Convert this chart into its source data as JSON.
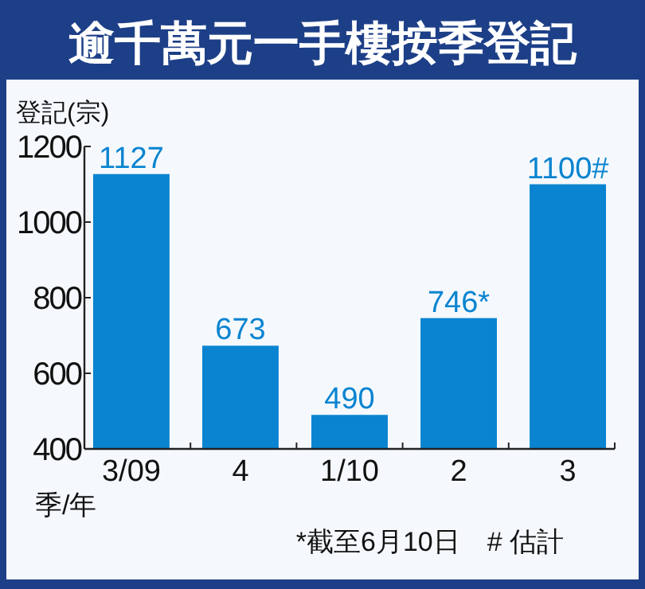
{
  "chart_data": {
    "type": "bar",
    "title": "逾千萬元一手樓按季登記",
    "ylabel": "登記(宗)",
    "xlabel": "季/年",
    "categories": [
      "3/09",
      "4",
      "1/10",
      "2",
      "3"
    ],
    "values": [
      1127,
      673,
      490,
      746,
      1100
    ],
    "value_labels": [
      "1127",
      "673",
      "490",
      "746*",
      "1100#"
    ],
    "color": "#0a84d0",
    "ylim": [
      400,
      1200
    ],
    "yticks": [
      400,
      600,
      800,
      1000,
      1200
    ],
    "annotations": [
      "*截至6月10日　# 估計"
    ]
  }
}
